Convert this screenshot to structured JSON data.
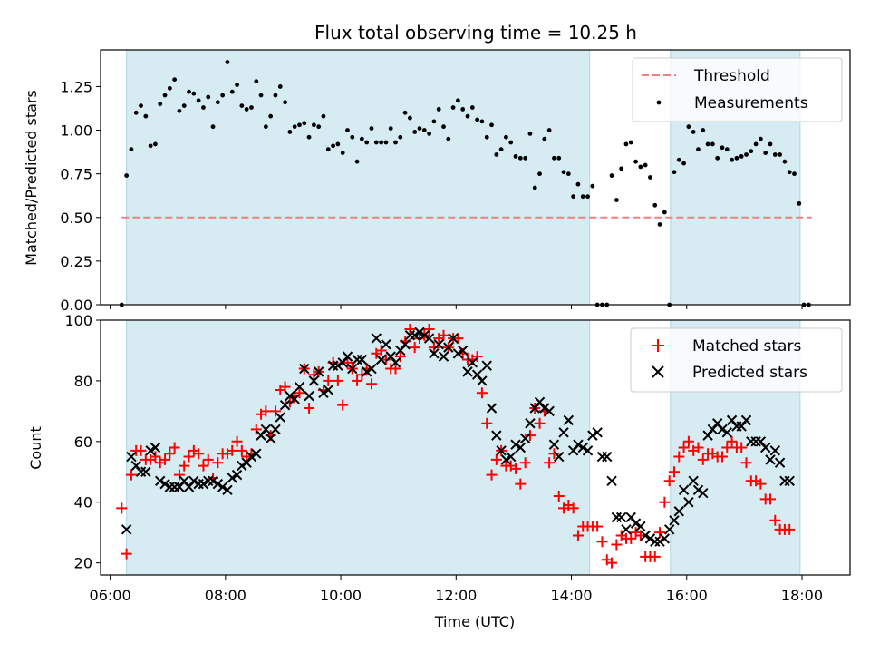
{
  "chart_data": [
    {
      "type": "scatter",
      "title": "Flux total observing time = 10.25 h",
      "ylabel": "Matched/Predicted stars",
      "xlim": [
        "05:50",
        "18:50"
      ],
      "ylim": [
        0,
        1.46
      ],
      "yticks": [
        "0.00",
        "0.25",
        "0.50",
        "0.75",
        "1.00",
        "1.25"
      ],
      "legend_position": "top-right",
      "shaded_intervals": [
        [
          "06:17",
          "14:19"
        ],
        [
          "15:43",
          "17:58"
        ]
      ],
      "threshold": {
        "name": "Threshold",
        "value": 0.5,
        "x_range": [
          "06:12",
          "18:10"
        ],
        "color": "#f08080"
      },
      "series": [
        {
          "name": "Measurements",
          "color": "#000000",
          "points": [
            [
              "06:12",
              0.0
            ],
            [
              "06:17",
              0.74
            ],
            [
              "06:22",
              0.89
            ],
            [
              "06:27",
              1.1
            ],
            [
              "06:32",
              1.14
            ],
            [
              "06:37",
              1.08
            ],
            [
              "06:42",
              0.91
            ],
            [
              "06:47",
              0.92
            ],
            [
              "06:52",
              1.15
            ],
            [
              "06:57",
              1.2
            ],
            [
              "07:02",
              1.24
            ],
            [
              "07:07",
              1.29
            ],
            [
              "07:12",
              1.11
            ],
            [
              "07:17",
              1.14
            ],
            [
              "07:22",
              1.22
            ],
            [
              "07:27",
              1.21
            ],
            [
              "07:32",
              1.17
            ],
            [
              "07:37",
              1.13
            ],
            [
              "07:42",
              1.19
            ],
            [
              "07:47",
              1.02
            ],
            [
              "07:52",
              1.16
            ],
            [
              "07:57",
              1.2
            ],
            [
              "08:02",
              1.39
            ],
            [
              "08:07",
              1.22
            ],
            [
              "08:12",
              1.26
            ],
            [
              "08:17",
              1.14
            ],
            [
              "08:22",
              1.12
            ],
            [
              "08:27",
              1.13
            ],
            [
              "08:32",
              1.28
            ],
            [
              "08:37",
              1.2
            ],
            [
              "08:42",
              1.02
            ],
            [
              "08:47",
              1.08
            ],
            [
              "08:52",
              1.2
            ],
            [
              "08:57",
              1.25
            ],
            [
              "09:02",
              1.16
            ],
            [
              "09:07",
              0.99
            ],
            [
              "09:12",
              1.02
            ],
            [
              "09:17",
              1.03
            ],
            [
              "09:22",
              1.04
            ],
            [
              "09:27",
              0.96
            ],
            [
              "09:32",
              1.03
            ],
            [
              "09:37",
              1.02
            ],
            [
              "09:42",
              1.08
            ],
            [
              "09:47",
              0.89
            ],
            [
              "09:52",
              0.91
            ],
            [
              "09:57",
              0.92
            ],
            [
              "10:02",
              0.87
            ],
            [
              "10:07",
              1.0
            ],
            [
              "10:12",
              0.96
            ],
            [
              "10:17",
              0.82
            ],
            [
              "10:22",
              0.95
            ],
            [
              "10:27",
              0.93
            ],
            [
              "10:32",
              1.01
            ],
            [
              "10:37",
              0.93
            ],
            [
              "10:42",
              0.93
            ],
            [
              "10:47",
              0.93
            ],
            [
              "10:52",
              1.01
            ],
            [
              "10:57",
              0.93
            ],
            [
              "11:02",
              0.96
            ],
            [
              "11:07",
              1.1
            ],
            [
              "11:12",
              1.07
            ],
            [
              "11:17",
              0.99
            ],
            [
              "11:22",
              1.01
            ],
            [
              "11:27",
              1.0
            ],
            [
              "11:32",
              0.98
            ],
            [
              "11:37",
              1.05
            ],
            [
              "11:42",
              1.12
            ],
            [
              "11:47",
              1.02
            ],
            [
              "11:52",
              0.95
            ],
            [
              "11:57",
              1.13
            ],
            [
              "12:02",
              1.17
            ],
            [
              "12:07",
              1.12
            ],
            [
              "12:12",
              1.08
            ],
            [
              "12:17",
              1.13
            ],
            [
              "12:22",
              1.06
            ],
            [
              "12:27",
              1.05
            ],
            [
              "12:32",
              0.96
            ],
            [
              "12:37",
              1.03
            ],
            [
              "12:42",
              0.86
            ],
            [
              "12:47",
              0.89
            ],
            [
              "12:52",
              0.96
            ],
            [
              "12:57",
              0.93
            ],
            [
              "13:02",
              0.85
            ],
            [
              "13:07",
              0.84
            ],
            [
              "13:12",
              0.84
            ],
            [
              "13:17",
              0.98
            ],
            [
              "13:22",
              0.67
            ],
            [
              "13:27",
              0.75
            ],
            [
              "13:32",
              0.95
            ],
            [
              "13:37",
              1.0
            ],
            [
              "13:42",
              0.84
            ],
            [
              "13:47",
              0.84
            ],
            [
              "13:52",
              0.76
            ],
            [
              "13:57",
              0.75
            ],
            [
              "14:02",
              0.62
            ],
            [
              "14:07",
              0.69
            ],
            [
              "14:12",
              0.62
            ],
            [
              "14:17",
              0.62
            ],
            [
              "14:22",
              0.68
            ],
            [
              "14:27",
              0.0
            ],
            [
              "14:32",
              0.0
            ],
            [
              "14:37",
              0.0
            ],
            [
              "14:42",
              0.74
            ],
            [
              "14:47",
              0.6
            ],
            [
              "14:52",
              0.78
            ],
            [
              "14:57",
              0.92
            ],
            [
              "15:02",
              0.93
            ],
            [
              "15:07",
              0.82
            ],
            [
              "15:12",
              0.79
            ],
            [
              "15:17",
              0.8
            ],
            [
              "15:22",
              0.73
            ],
            [
              "15:27",
              0.57
            ],
            [
              "15:32",
              0.46
            ],
            [
              "15:37",
              0.53
            ],
            [
              "15:42",
              0.0
            ],
            [
              "15:47",
              0.76
            ],
            [
              "15:52",
              0.83
            ],
            [
              "15:57",
              0.81
            ],
            [
              "16:02",
              1.02
            ],
            [
              "16:07",
              0.99
            ],
            [
              "16:12",
              0.89
            ],
            [
              "16:17",
              1.0
            ],
            [
              "16:22",
              0.92
            ],
            [
              "16:27",
              0.92
            ],
            [
              "16:32",
              0.84
            ],
            [
              "16:37",
              0.9
            ],
            [
              "16:42",
              0.89
            ],
            [
              "16:47",
              0.83
            ],
            [
              "16:52",
              0.84
            ],
            [
              "16:57",
              0.85
            ],
            [
              "17:02",
              0.86
            ],
            [
              "17:07",
              0.88
            ],
            [
              "17:12",
              0.92
            ],
            [
              "17:17",
              0.95
            ],
            [
              "17:22",
              0.87
            ],
            [
              "17:27",
              0.92
            ],
            [
              "17:32",
              0.86
            ],
            [
              "17:37",
              0.86
            ],
            [
              "17:42",
              0.82
            ],
            [
              "17:47",
              0.76
            ],
            [
              "17:52",
              0.75
            ],
            [
              "17:57",
              0.58
            ],
            [
              "18:02",
              0.0
            ],
            [
              "18:07",
              0.0
            ]
          ]
        }
      ]
    },
    {
      "type": "scatter",
      "xlabel": "Time (UTC)",
      "ylabel": "Count",
      "xlim": [
        "05:50",
        "18:50"
      ],
      "ylim": [
        16,
        100
      ],
      "xticks": [
        "06:00",
        "08:00",
        "10:00",
        "12:00",
        "14:00",
        "16:00",
        "18:00"
      ],
      "yticks": [
        "20",
        "40",
        "60",
        "80",
        "100"
      ],
      "legend_position": "top-right",
      "shaded_intervals": [
        [
          "06:17",
          "14:19"
        ],
        [
          "15:43",
          "17:58"
        ]
      ],
      "series": [
        {
          "name": "Matched stars",
          "marker": "plus",
          "color": "#ff0000",
          "x_start": "06:12",
          "x_step_minutes": 5,
          "values": [
            38,
            23,
            49,
            57,
            57,
            54,
            54,
            55,
            53,
            54,
            56,
            58,
            49,
            52,
            55,
            57,
            56,
            52,
            54,
            48,
            53,
            56,
            56,
            57,
            60,
            57,
            55,
            56,
            64,
            69,
            70,
            62,
            70,
            77,
            78,
            73,
            75,
            76,
            84,
            71,
            82,
            83,
            77,
            80,
            86,
            80,
            72,
            86,
            84,
            80,
            82,
            84,
            79,
            89,
            90,
            87,
            84,
            84,
            88,
            93,
            97,
            91,
            94,
            95,
            97,
            91,
            94,
            95,
            91,
            94,
            94,
            89,
            87,
            87,
            88,
            76,
            66,
            49,
            54,
            57,
            52,
            52,
            51,
            46,
            53,
            62,
            71,
            66,
            70,
            53,
            56,
            42,
            38,
            39,
            38,
            29,
            32,
            32,
            32,
            32,
            27,
            21,
            20,
            26,
            29,
            28,
            28,
            30,
            29,
            22,
            22,
            22,
            30,
            40,
            47,
            50,
            55,
            58,
            60,
            57,
            58,
            54,
            56,
            56,
            55,
            55,
            58,
            60,
            58,
            58,
            53,
            47,
            47,
            46,
            41,
            41,
            34,
            31,
            31,
            31
          ]
        },
        {
          "name": "Predicted stars",
          "marker": "x",
          "color": "#000000",
          "x_start": "06:12",
          "x_step_minutes": 5,
          "values": [
            null,
            31,
            55,
            52,
            50,
            50,
            57,
            58,
            47,
            46,
            45,
            45,
            45,
            47,
            45,
            47,
            46,
            46,
            47,
            47,
            46,
            45,
            44,
            48,
            49,
            52,
            53,
            55,
            56,
            62,
            64,
            61,
            64,
            68,
            72,
            75,
            74,
            78,
            84,
            75,
            80,
            83,
            76,
            77,
            85,
            85,
            86,
            88,
            84,
            87,
            87,
            83,
            84,
            94,
            87,
            92,
            88,
            86,
            90,
            92,
            95,
            95,
            96,
            95,
            94,
            89,
            92,
            88,
            91,
            94,
            89,
            90,
            83,
            86,
            82,
            80,
            85,
            71,
            62,
            57,
            54,
            55,
            59,
            58,
            61,
            66,
            71,
            73,
            71,
            70,
            59,
            55,
            63,
            67,
            57,
            59,
            58,
            57,
            62,
            63,
            55,
            55,
            47,
            35,
            35,
            31,
            35,
            33,
            32,
            29,
            28,
            27,
            27,
            28,
            31,
            34,
            37,
            44,
            40,
            47,
            44,
            43,
            62,
            64,
            66,
            64,
            63,
            67,
            65,
            65,
            67,
            60,
            60,
            60,
            58,
            54,
            57,
            53,
            47,
            47
          ]
        }
      ]
    }
  ]
}
